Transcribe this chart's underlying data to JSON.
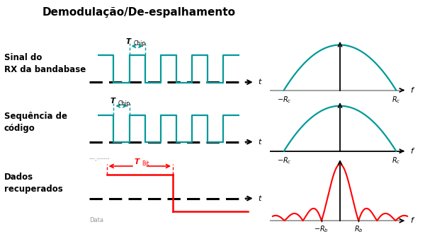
{
  "title": "Demodulação/De-espalhamento",
  "title_fontsize": 11,
  "title_fontweight": "bold",
  "label1": "Sinal do\nRX da bandabase",
  "label2": "Sequência de\ncódigo",
  "label3": "Dados\nrecuperados",
  "sublabel2": "---,------",
  "sublabel3": "Data",
  "tchip_label": "T",
  "tchip_sub": "Chip",
  "tbit_label": "T",
  "tbit_sub": "Bit",
  "teal_color": "#009999",
  "red_color": "#FF0000",
  "black": "#000000",
  "gray": "#888888",
  "bg": "#FFFFFF",
  "axis_label_f": "f",
  "axis_label_t": "t",
  "rc_neg": "-R",
  "rc_neg_sub": "c",
  "rc_pos": "R",
  "rc_pos_sub": "c",
  "rb_neg": "-R",
  "rb_neg_sub": "b",
  "rb_pos": "R",
  "rb_pos_sub": "b"
}
